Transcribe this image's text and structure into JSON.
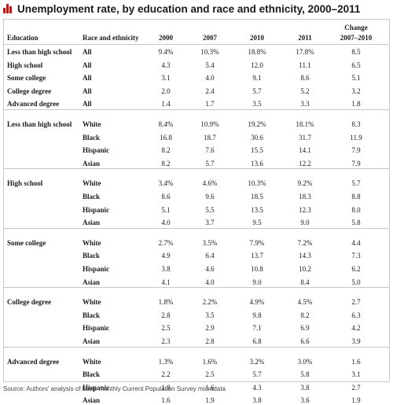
{
  "title": "Unemployment rate, by education and race and ethnicity, 2000–2011",
  "source": "Source: Authors' analysis of basic monthly Current Population Survey microdata",
  "accent_color": "#b31b1b",
  "header_icon": "bar-chart-icon",
  "chart_data": {
    "type": "table",
    "title": "Unemployment rate, by education and race and ethnicity, 2000–2011",
    "columns": {
      "education": "Education",
      "race": "Race and ethnicity",
      "y2000": "2000",
      "y2007": "2007",
      "y2010": "2010",
      "y2011": "2011",
      "change_top": "Change",
      "change_bottom": "2007–2010"
    },
    "groups": [
      {
        "rows": [
          {
            "education": "Less than high school",
            "race": "All",
            "y2000": "9.4%",
            "y2007": "10.3%",
            "y2010": "18.8%",
            "y2011": "17.8%",
            "change": "8.5"
          },
          {
            "education": "High school",
            "race": "All",
            "y2000": "4.3",
            "y2007": "5.4",
            "y2010": "12.0",
            "y2011": "11.1",
            "change": "6.5"
          },
          {
            "education": "Some college",
            "race": "All",
            "y2000": "3.1",
            "y2007": "4.0",
            "y2010": "9.1",
            "y2011": "8.6",
            "change": "5.1"
          },
          {
            "education": "College degree",
            "race": "All",
            "y2000": "2.0",
            "y2007": "2.4",
            "y2010": "5.7",
            "y2011": "5.2",
            "change": "3.2"
          },
          {
            "education": "Advanced degree",
            "race": "All",
            "y2000": "1.4",
            "y2007": "1.7",
            "y2010": "3.5",
            "y2011": "3.3",
            "change": "1.8"
          }
        ]
      },
      {
        "rows": [
          {
            "education": "Less than high school",
            "race": "White",
            "y2000": "8.4%",
            "y2007": "10.9%",
            "y2010": "19.2%",
            "y2011": "18.1%",
            "change": "8.3"
          },
          {
            "education": "",
            "race": "Black",
            "y2000": "16.8",
            "y2007": "18.7",
            "y2010": "30.6",
            "y2011": "31.7",
            "change": "11.9"
          },
          {
            "education": "",
            "race": "Hispanic",
            "y2000": "8.2",
            "y2007": "7.6",
            "y2010": "15.5",
            "y2011": "14.1",
            "change": "7.9"
          },
          {
            "education": "",
            "race": "Asian",
            "y2000": "8.2",
            "y2007": "5.7",
            "y2010": "13.6",
            "y2011": "12.2",
            "change": "7.9"
          }
        ]
      },
      {
        "rows": [
          {
            "education": "High school",
            "race": "White",
            "y2000": "3.4%",
            "y2007": "4.6%",
            "y2010": "10.3%",
            "y2011": "9.2%",
            "change": "5.7"
          },
          {
            "education": "",
            "race": "Black",
            "y2000": "8.6",
            "y2007": "9.6",
            "y2010": "18.5",
            "y2011": "18.3",
            "change": "8.8"
          },
          {
            "education": "",
            "race": "Hispanic",
            "y2000": "5.1",
            "y2007": "5.5",
            "y2010": "13.5",
            "y2011": "12.3",
            "change": "8.0"
          },
          {
            "education": "",
            "race": "Asian",
            "y2000": "4.0",
            "y2007": "3.7",
            "y2010": "9.5",
            "y2011": "9.0",
            "change": "5.8"
          }
        ]
      },
      {
        "rows": [
          {
            "education": "Some college",
            "race": "White",
            "y2000": "2.7%",
            "y2007": "3.5%",
            "y2010": "7.9%",
            "y2011": "7.2%",
            "change": "4.4"
          },
          {
            "education": "",
            "race": "Black",
            "y2000": "4.9",
            "y2007": "6.4",
            "y2010": "13.7",
            "y2011": "14.3",
            "change": "7.3"
          },
          {
            "education": "",
            "race": "Hispanic",
            "y2000": "3.8",
            "y2007": "4.6",
            "y2010": "10.8",
            "y2011": "10.2",
            "change": "6.2"
          },
          {
            "education": "",
            "race": "Asian",
            "y2000": "4.1",
            "y2007": "4.0",
            "y2010": "9.0",
            "y2011": "8.4",
            "change": "5.0"
          }
        ]
      },
      {
        "rows": [
          {
            "education": "College degree",
            "race": "White",
            "y2000": "1.8%",
            "y2007": "2.2%",
            "y2010": "4.9%",
            "y2011": "4.5%",
            "change": "2.7"
          },
          {
            "education": "",
            "race": "Black",
            "y2000": "2.8",
            "y2007": "3.5",
            "y2010": "9.8",
            "y2011": "8.2",
            "change": "6.3"
          },
          {
            "education": "",
            "race": "Hispanic",
            "y2000": "2.5",
            "y2007": "2.9",
            "y2010": "7.1",
            "y2011": "6.9",
            "change": "4.2"
          },
          {
            "education": "",
            "race": "Asian",
            "y2000": "2.3",
            "y2007": "2.8",
            "y2010": "6.8",
            "y2011": "6.6",
            "change": "3.9"
          }
        ]
      },
      {
        "rows": [
          {
            "education": "Advanced degree",
            "race": "White",
            "y2000": "1.3%",
            "y2007": "1.6%",
            "y2010": "3.2%",
            "y2011": "3.0%",
            "change": "1.6"
          },
          {
            "education": "",
            "race": "Black",
            "y2000": "2.2",
            "y2007": "2.5",
            "y2010": "5.7",
            "y2011": "5.8",
            "change": "3.1"
          },
          {
            "education": "",
            "race": "Hispanic",
            "y2000": "1.8",
            "y2007": "1.6",
            "y2010": "4.3",
            "y2011": "3.8",
            "change": "2.7"
          },
          {
            "education": "",
            "race": "Asian",
            "y2000": "1.6",
            "y2007": "1.9",
            "y2010": "3.8",
            "y2011": "3.6",
            "change": "1.9"
          }
        ]
      }
    ]
  }
}
